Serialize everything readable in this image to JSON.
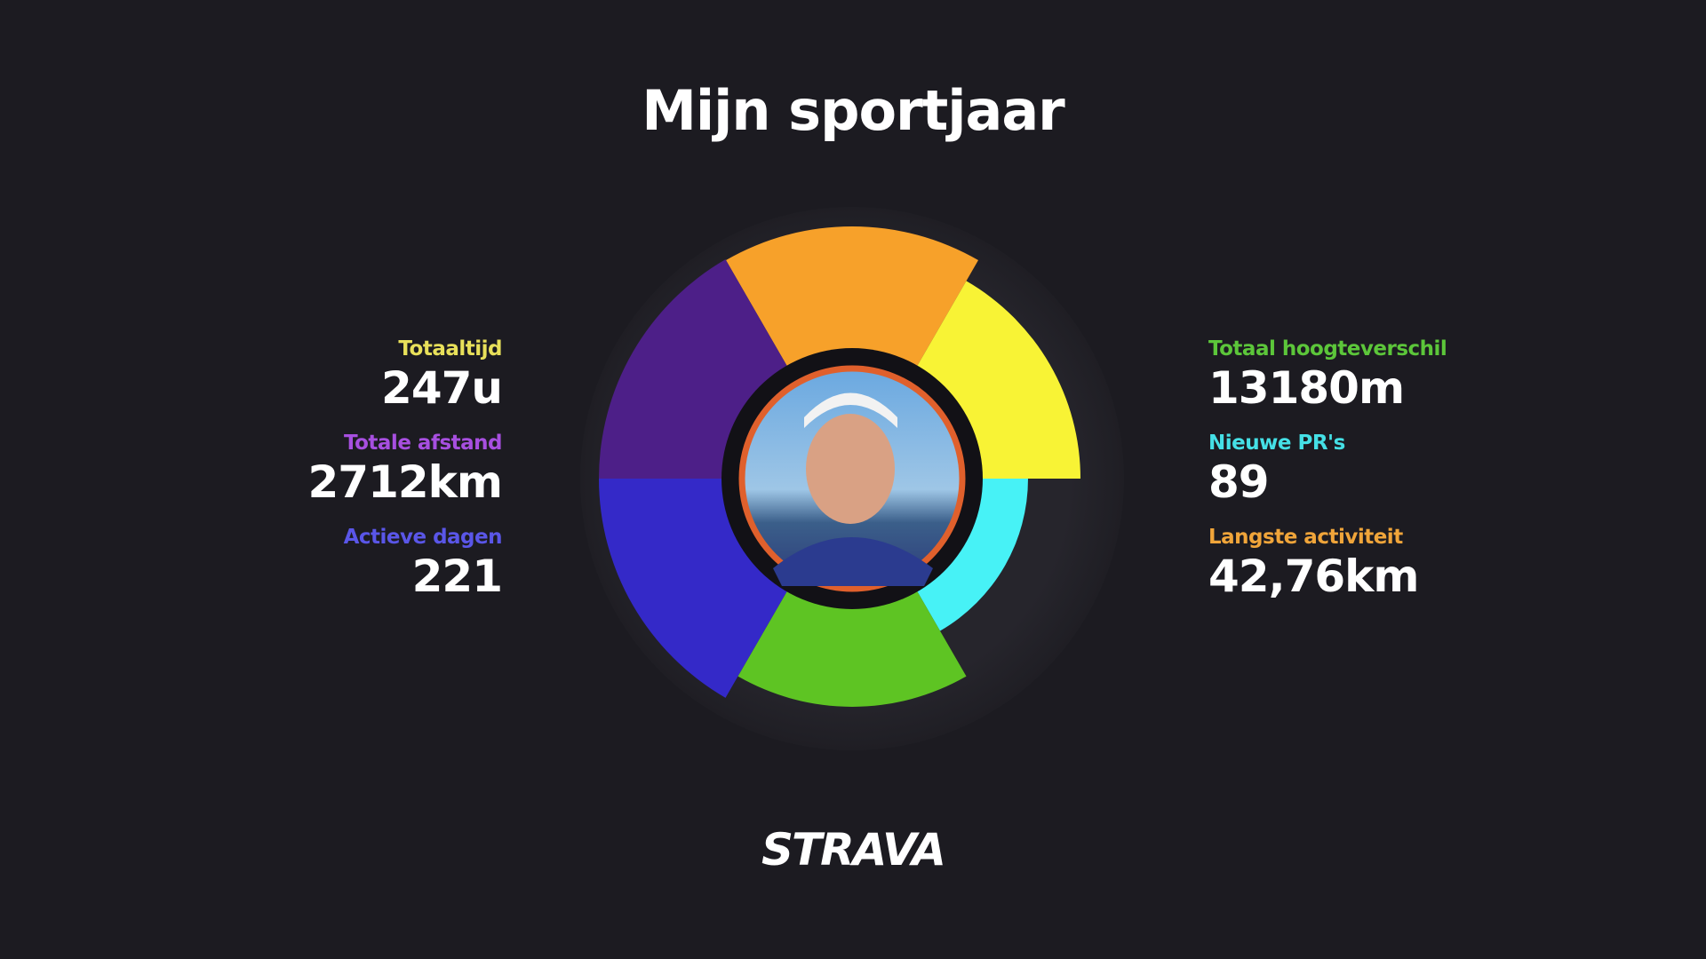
{
  "title": "Mijn sportjaar",
  "stats_left": [
    {
      "label": "Totaaltijd",
      "value": "247u"
    },
    {
      "label": "Totale afstand",
      "value": "2712km"
    },
    {
      "label": "Actieve dagen",
      "value": "221"
    }
  ],
  "stats_right": [
    {
      "label": "Totaal hoogteverschil",
      "value": "13180m"
    },
    {
      "label": "Nieuwe PR's",
      "value": "89"
    },
    {
      "label": "Langste activiteit",
      "value": "42,76km"
    }
  ],
  "logo": "STRAVA"
}
